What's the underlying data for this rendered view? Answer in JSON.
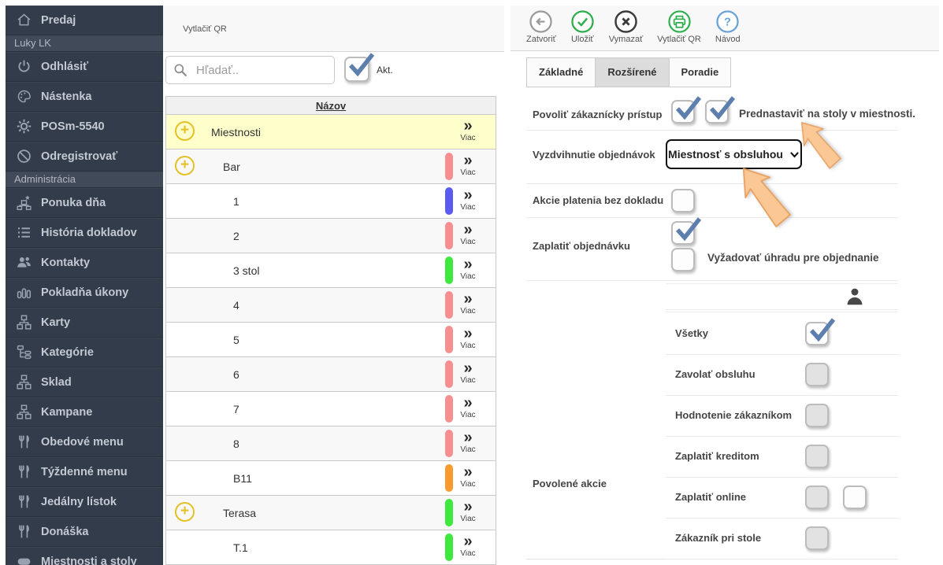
{
  "colors": {
    "accent_green": "#2fae4e",
    "accent_blue": "#6aa3d8",
    "check_blue": "#5d7fae",
    "highlight_row": "#ffffcb",
    "plus_yellow": "#e4c126",
    "arrow_orange": "#fac795",
    "sidebar_bg": "#333c4b",
    "pills": {
      "salmon": "#f69090",
      "blue": "#5a5cf0",
      "green": "#3fe83f",
      "orange": "#f79b2e"
    }
  },
  "sidebar": {
    "items": [
      {
        "type": "item",
        "icon": "home-icon",
        "label": "Predaj"
      },
      {
        "type": "section",
        "label": "Luky LK"
      },
      {
        "type": "item",
        "icon": "power-icon",
        "label": "Odhlásiť"
      },
      {
        "type": "item",
        "icon": "palette-icon",
        "label": "Nástenka"
      },
      {
        "type": "item",
        "icon": "gear-icon",
        "label": "POSm-5540"
      },
      {
        "type": "item",
        "icon": "ban-icon",
        "label": "Odregistrovať"
      },
      {
        "type": "section",
        "label": "Administrácia"
      },
      {
        "type": "item",
        "icon": "sitemap-star-icon",
        "label": "Ponuka dňa"
      },
      {
        "type": "item",
        "icon": "list-icon",
        "label": "História dokladov"
      },
      {
        "type": "item",
        "icon": "users-icon",
        "label": "Kontakty"
      },
      {
        "type": "item",
        "icon": "chart-icon",
        "label": "Pokladňa úkony"
      },
      {
        "type": "item",
        "icon": "sitemap-icon",
        "label": "Karty"
      },
      {
        "type": "item",
        "icon": "tree-icon",
        "label": "Kategórie"
      },
      {
        "type": "item",
        "icon": "sitemap-icon",
        "label": "Sklad"
      },
      {
        "type": "item",
        "icon": "sitemap-icon",
        "label": "Kampane"
      },
      {
        "type": "item",
        "icon": "cutlery-icon",
        "label": "Obedové menu"
      },
      {
        "type": "item",
        "icon": "cutlery-icon",
        "label": "Týždenné menu"
      },
      {
        "type": "item",
        "icon": "cutlery-icon",
        "label": "Jedálny lístok"
      },
      {
        "type": "item",
        "icon": "cutlery-icon",
        "label": "Donáška"
      },
      {
        "type": "item",
        "icon": "table-icon",
        "label": "Miestnosti a stoly"
      }
    ]
  },
  "list_panel": {
    "print_qr_label": "Vytlačiť QR",
    "search_placeholder": "Hľadať..",
    "active_filter_label": "Akt.",
    "active_filter_checked": true,
    "table": {
      "header": "Názov",
      "more_label": "Viac",
      "rows": [
        {
          "label": "Miestnosti",
          "indent": 0,
          "plus": true,
          "color": null,
          "highlighted": true
        },
        {
          "label": "Bar",
          "indent": 1,
          "plus": true,
          "color": "salmon",
          "highlighted": false
        },
        {
          "label": "1",
          "indent": 2,
          "plus": false,
          "color": "blue",
          "highlighted": false
        },
        {
          "label": "2",
          "indent": 2,
          "plus": false,
          "color": "salmon",
          "highlighted": false
        },
        {
          "label": "3 stol",
          "indent": 2,
          "plus": false,
          "color": "green",
          "highlighted": false
        },
        {
          "label": "4",
          "indent": 2,
          "plus": false,
          "color": "salmon",
          "highlighted": false
        },
        {
          "label": "5",
          "indent": 2,
          "plus": false,
          "color": "salmon",
          "highlighted": false
        },
        {
          "label": "6",
          "indent": 2,
          "plus": false,
          "color": "salmon",
          "highlighted": false
        },
        {
          "label": "7",
          "indent": 2,
          "plus": false,
          "color": "salmon",
          "highlighted": false
        },
        {
          "label": "8",
          "indent": 2,
          "plus": false,
          "color": "salmon",
          "highlighted": false
        },
        {
          "label": "B11",
          "indent": 2,
          "plus": false,
          "color": "orange",
          "highlighted": false
        },
        {
          "label": "Terasa",
          "indent": 1,
          "plus": true,
          "color": "green",
          "highlighted": false
        },
        {
          "label": "T.1",
          "indent": 2,
          "plus": false,
          "color": "green",
          "highlighted": false
        }
      ]
    }
  },
  "detail_panel": {
    "toolbar": [
      {
        "icon": "back-icon",
        "label": "Zatvoriť"
      },
      {
        "icon": "save-icon",
        "label": "Uložiť"
      },
      {
        "icon": "delete-icon",
        "label": "Vymazať"
      },
      {
        "icon": "print-icon",
        "label": "Vytlačiť QR"
      },
      {
        "icon": "help-icon",
        "label": "Návod"
      }
    ],
    "tabs": [
      {
        "label": "Základné",
        "selected": false
      },
      {
        "label": "Rozšírené",
        "selected": true
      },
      {
        "label": "Poradie",
        "selected": false
      }
    ],
    "form": {
      "customer_access_label": "Povoliť zákaznícky prístup",
      "customer_access_checked": true,
      "preset_tables_checked": true,
      "preset_tables_label": "Prednastaviť na stoly v miestnosti.",
      "order_pickup_label": "Vyzdvihnutie objednávok",
      "order_pickup_value": "Miestnosť s obsluhou",
      "pay_actions_no_receipt_label": "Akcie platenia bez dokladu",
      "pay_actions_no_receipt_checked": false,
      "pay_order_label": "Zaplatiť objednávku",
      "pay_order_checked": true,
      "require_payment_label": "Vyžadovať úhradu pre objednanie",
      "require_payment_checked": false
    },
    "allowed_actions": {
      "label": "Povolené akcie",
      "rows": [
        {
          "label": "Všetky",
          "col1": "checked",
          "col2": null
        },
        {
          "label": "Zavolať obsluhu",
          "col1": "grey",
          "col2": null
        },
        {
          "label": "Hodnotenie zákazníkom",
          "col1": "grey",
          "col2": null
        },
        {
          "label": "Zaplatiť kreditom",
          "col1": "grey",
          "col2": null
        },
        {
          "label": "Zaplatiť online",
          "col1": "grey",
          "col2": "white"
        },
        {
          "label": "Zákazník pri stole",
          "col1": "grey",
          "col2": null
        }
      ]
    }
  }
}
